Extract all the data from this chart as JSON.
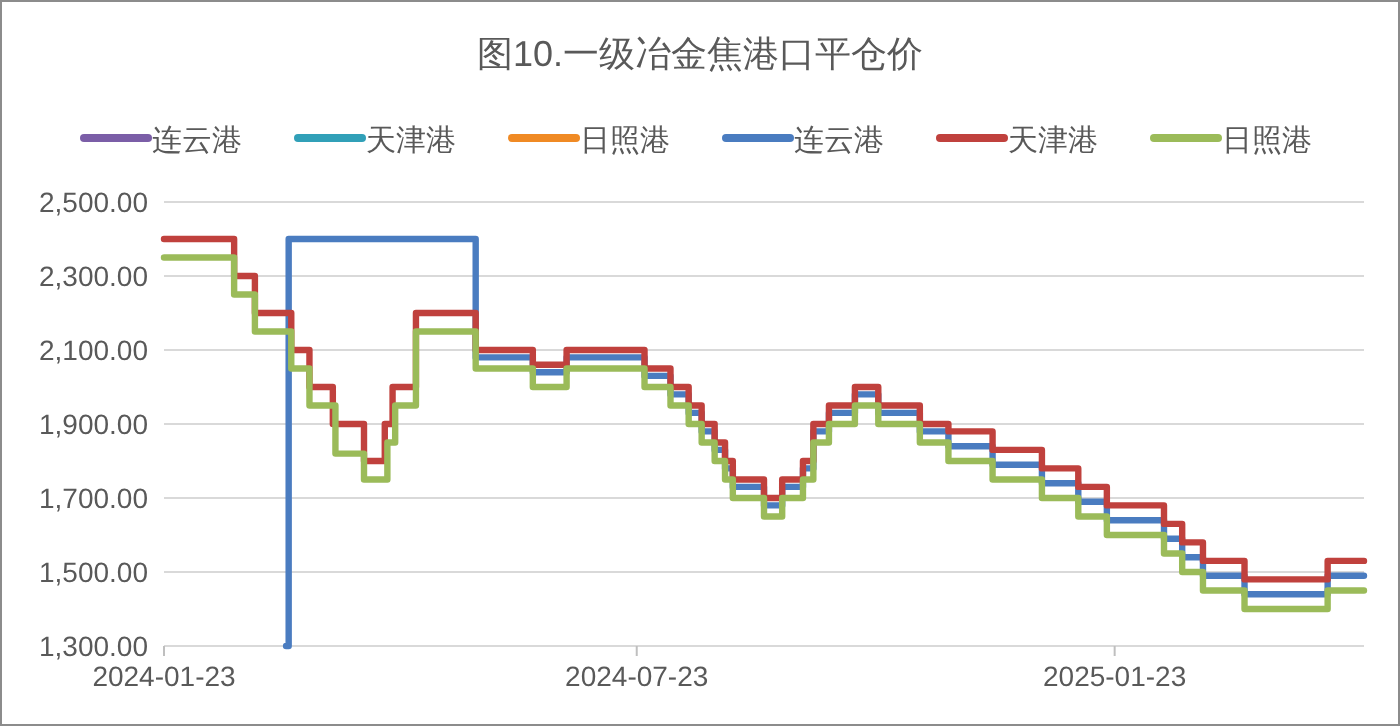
{
  "chart_data": {
    "type": "step",
    "title": "图10.一级冶金焦港口平仓价",
    "xlim": [
      "2024-01-23",
      "2025-04-29"
    ],
    "xticks": [
      "2024-01-23",
      "2024-07-23",
      "2025-01-23"
    ],
    "ylim": [
      1300,
      2500
    ],
    "yticks": [
      {
        "value": 1300,
        "label": "1,300.00"
      },
      {
        "value": 1500,
        "label": "1,500.00"
      },
      {
        "value": 1700,
        "label": "1,700.00"
      },
      {
        "value": 1900,
        "label": "1,900.00"
      },
      {
        "value": 2100,
        "label": "2,100.00"
      },
      {
        "value": 2300,
        "label": "2,300.00"
      },
      {
        "value": 2500,
        "label": "2,500.00"
      }
    ],
    "grid": "y",
    "legend": "top",
    "line_style": "solid",
    "series": [
      {
        "name": "连云港",
        "color": "#7b5ea7"
      },
      {
        "name": "天津港",
        "color": "#31a0b8"
      },
      {
        "name": "日照港",
        "color": "#f08a24"
      },
      {
        "name": "连云港",
        "color": "#4a7cc0",
        "x": [
          "2024-03-10",
          "2024-03-11",
          "2024-05-18",
          "2024-05-22",
          "2024-06-13",
          "2024-06-26",
          "2024-07-26",
          "2024-08-05",
          "2024-08-12",
          "2024-08-17",
          "2024-08-22",
          "2024-08-26",
          "2024-08-29",
          "2024-09-10",
          "2024-09-17",
          "2024-09-25",
          "2024-09-29",
          "2024-10-05",
          "2024-10-15",
          "2024-10-24",
          "2024-11-09",
          "2024-11-20",
          "2024-12-07",
          "2024-12-26",
          "2025-01-09",
          "2025-01-20",
          "2025-02-11",
          "2025-02-18",
          "2025-02-26",
          "2025-03-14",
          "2025-04-15",
          "2025-04-29"
        ],
        "values": [
          1300,
          2400,
          2400,
          2080,
          2040,
          2080,
          2030,
          1980,
          1930,
          1880,
          1830,
          1780,
          1730,
          1680,
          1730,
          1780,
          1880,
          1930,
          1980,
          1930,
          1880,
          1840,
          1790,
          1740,
          1690,
          1640,
          1590,
          1540,
          1490,
          1440,
          1490,
          1490
        ]
      },
      {
        "name": "天津港",
        "color": "#c0413d",
        "x": [
          "2024-01-23",
          "2024-02-19",
          "2024-02-27",
          "2024-03-12",
          "2024-03-19",
          "2024-03-28",
          "2024-04-09",
          "2024-04-17",
          "2024-04-20",
          "2024-04-29",
          "2024-05-22",
          "2024-06-13",
          "2024-06-26",
          "2024-07-26",
          "2024-08-05",
          "2024-08-12",
          "2024-08-17",
          "2024-08-22",
          "2024-08-26",
          "2024-08-29",
          "2024-09-10",
          "2024-09-17",
          "2024-09-25",
          "2024-09-29",
          "2024-10-05",
          "2024-10-15",
          "2024-10-24",
          "2024-11-09",
          "2024-11-20",
          "2024-12-07",
          "2024-12-26",
          "2025-01-09",
          "2025-01-20",
          "2025-02-11",
          "2025-02-18",
          "2025-02-26",
          "2025-03-14",
          "2025-04-15",
          "2025-04-29"
        ],
        "values": [
          2400,
          2300,
          2200,
          2100,
          2000,
          1900,
          1800,
          1900,
          2000,
          2200,
          2100,
          2060,
          2100,
          2050,
          2000,
          1950,
          1900,
          1850,
          1800,
          1750,
          1700,
          1750,
          1800,
          1900,
          1950,
          2000,
          1950,
          1900,
          1880,
          1830,
          1780,
          1730,
          1680,
          1630,
          1580,
          1530,
          1480,
          1530,
          1530
        ]
      },
      {
        "name": "日照港",
        "color": "#9bbb59",
        "x": [
          "2024-01-23",
          "2024-02-19",
          "2024-02-27",
          "2024-03-12",
          "2024-03-19",
          "2024-03-29",
          "2024-04-09",
          "2024-04-18",
          "2024-04-21",
          "2024-04-29",
          "2024-05-22",
          "2024-06-13",
          "2024-06-26",
          "2024-07-26",
          "2024-08-05",
          "2024-08-12",
          "2024-08-17",
          "2024-08-22",
          "2024-08-26",
          "2024-08-29",
          "2024-09-10",
          "2024-09-17",
          "2024-09-25",
          "2024-09-29",
          "2024-10-05",
          "2024-10-15",
          "2024-10-24",
          "2024-11-09",
          "2024-11-20",
          "2024-12-07",
          "2024-12-26",
          "2025-01-09",
          "2025-01-20",
          "2025-02-11",
          "2025-02-18",
          "2025-02-26",
          "2025-03-14",
          "2025-04-15",
          "2025-04-29"
        ],
        "values": [
          2350,
          2250,
          2150,
          2050,
          1950,
          1820,
          1750,
          1850,
          1950,
          2150,
          2050,
          2000,
          2050,
          2000,
          1950,
          1900,
          1850,
          1800,
          1750,
          1700,
          1650,
          1700,
          1750,
          1850,
          1900,
          1950,
          1900,
          1850,
          1800,
          1750,
          1700,
          1650,
          1600,
          1550,
          1500,
          1450,
          1400,
          1450,
          1450
        ]
      }
    ]
  }
}
